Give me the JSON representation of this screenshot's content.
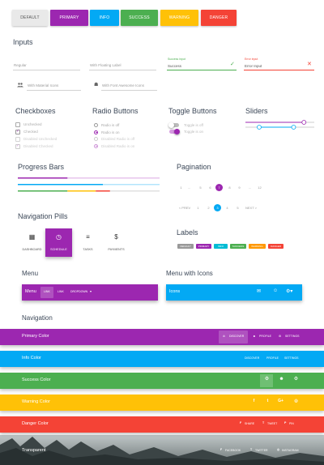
{
  "buttons": [
    {
      "label": "Default",
      "color": "#e9e9e9",
      "text": "#555"
    },
    {
      "label": "Primary",
      "color": "#9c27b0",
      "text": "#fff"
    },
    {
      "label": "Info",
      "color": "#03a9f4",
      "text": "#fff"
    },
    {
      "label": "Success",
      "color": "#4caf50",
      "text": "#fff"
    },
    {
      "label": "Warning",
      "color": "#ffc107",
      "text": "#fff"
    },
    {
      "label": "Danger",
      "color": "#f44336",
      "text": "#fff"
    }
  ],
  "inputs": {
    "title": "Inputs",
    "regular": "Regular",
    "floating": "With Floating Label",
    "success_label": "Success input",
    "success_value": "Success",
    "error_label": "Error input",
    "error_value": "Error Input",
    "material_icons": "With Material Icons",
    "fa_icons": "With Font Awesome Icons"
  },
  "checkboxes": {
    "title": "Checkboxes",
    "items": [
      "Unchecked",
      "Checked",
      "Disabled Unchecked",
      "Disabled Checked"
    ]
  },
  "radios": {
    "title": "Radio Buttons",
    "items": [
      "Radio is off",
      "Radio is on",
      "Disabled Radio is off",
      "Disabled Radio is on"
    ]
  },
  "toggles": {
    "title": "Toggle Buttons",
    "items": [
      "Toggle is off",
      "Toggle is on"
    ]
  },
  "sliders": {
    "title": "Sliders",
    "slider1_value": 0.85,
    "slider2_lower": 0.2,
    "slider2_upper": 0.7
  },
  "progress": {
    "title": "Progress Bars",
    "bar1": 0.35,
    "bar2": 0.6,
    "bar3_segments": [
      0.35,
      0.2,
      0.1
    ]
  },
  "pagination": {
    "title": "Pagination",
    "row1": [
      "1",
      "...",
      "5",
      "6",
      "7",
      "8",
      "9",
      "...",
      "12"
    ],
    "row1_active": "7",
    "row2": [
      "< PREV",
      "1",
      "2",
      "3",
      "4",
      "5",
      "NEXT >"
    ],
    "row2_active": "3"
  },
  "nav_pills": {
    "title": "Navigation Pills",
    "items": [
      {
        "label": "Dashboard",
        "icon": "dashboard-icon"
      },
      {
        "label": "Schedule",
        "icon": "schedule-icon"
      },
      {
        "label": "Tasks",
        "icon": "list-icon"
      },
      {
        "label": "Payments",
        "icon": "dollar-icon"
      }
    ],
    "active": "Schedule"
  },
  "labels": {
    "title": "Labels",
    "items": [
      {
        "label": "Default",
        "color": "#999999"
      },
      {
        "label": "Primary",
        "color": "#9c27b0"
      },
      {
        "label": "Info",
        "color": "#00bcd4"
      },
      {
        "label": "Success",
        "color": "#4caf50"
      },
      {
        "label": "Warning",
        "color": "#ff9800"
      },
      {
        "label": "Danger",
        "color": "#f44336"
      }
    ]
  },
  "menu": {
    "title": "Menu",
    "brand": "Menu",
    "links": [
      "Link",
      "Link",
      "Dropdown"
    ]
  },
  "menu_icons": {
    "title": "Menu with Icons",
    "brand": "Icons"
  },
  "navigation": {
    "title": "Navigation",
    "bars": [
      {
        "title": "Primary Color",
        "color": "#9c27b0",
        "links": [
          "Discover",
          "Profile",
          "Settings"
        ]
      },
      {
        "title": "Info Color",
        "color": "#03a9f4",
        "links": [
          "Discover",
          "Profile",
          "Settings"
        ]
      },
      {
        "title": "Success Color",
        "color": "#4caf50",
        "links": []
      },
      {
        "title": "Warning Color",
        "color": "#ffc107",
        "links": []
      },
      {
        "title": "Danger Color",
        "color": "#f44336",
        "links": [
          "Share",
          "Tweet",
          "Pin"
        ]
      },
      {
        "title": "Transparent",
        "color": "transparent",
        "links": [
          "Facebook",
          "Twitter",
          "Instagram"
        ]
      }
    ]
  }
}
